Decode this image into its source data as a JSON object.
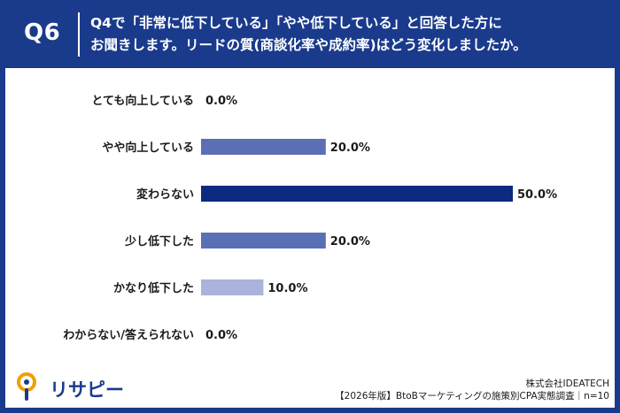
{
  "header": {
    "question_number": "Q6",
    "question_line1": "Q4で「非常に低下している」「やや低下している」と回答した方に",
    "question_line2": "お聞きします。リードの質(商談化率や成約率)はどう変化しましたか。"
  },
  "footer": {
    "brand": "リサピー",
    "company": "株式会社IDEATECH",
    "source": "【2026年版】BtoBマーケティングの施策別CPA実態調査｜n=10"
  },
  "colors": {
    "header_bg": "#1a3a8c",
    "bar_max": "#0d2a80",
    "bar_mid": "#5b6fb5",
    "bar_low": "#a9b3dc",
    "logo_orange": "#f0a000",
    "logo_blue": "#1a3a8c"
  },
  "chart_data": {
    "type": "bar",
    "orientation": "horizontal",
    "categories": [
      "とても向上している",
      "やや向上している",
      "変わらない",
      "少し低下した",
      "かなり低下した",
      "わからない/答えられない"
    ],
    "values": [
      0.0,
      20.0,
      50.0,
      20.0,
      10.0,
      0.0
    ],
    "value_labels": [
      "0.0%",
      "20.0%",
      "50.0%",
      "20.0%",
      "10.0%",
      "0.0%"
    ],
    "xlim": [
      0,
      50
    ],
    "unit": "%",
    "grid": false
  }
}
